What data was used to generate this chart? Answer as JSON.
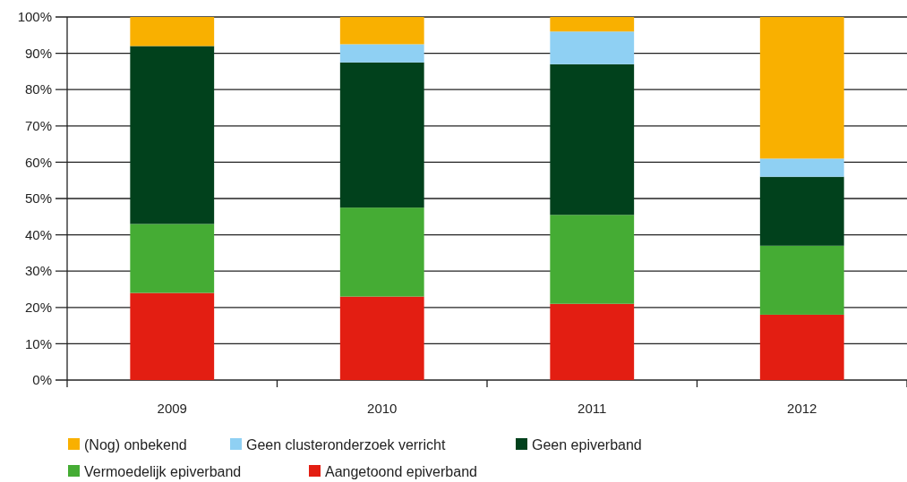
{
  "chart_data": {
    "type": "bar",
    "stacked": true,
    "categories": [
      "2009",
      "2010",
      "2011",
      "2012"
    ],
    "series": [
      {
        "name": "Aangetoond epiverband",
        "color": "#e31e12",
        "values": [
          24,
          23,
          21,
          18
        ]
      },
      {
        "name": "Vermoedelijk epiverband",
        "color": "#45ac34",
        "values": [
          19,
          24.5,
          24.5,
          19
        ]
      },
      {
        "name": "Geen epiverband",
        "color": "#01411c",
        "values": [
          49,
          40,
          41.5,
          19
        ]
      },
      {
        "name": "Geen clusteronderzoek verricht",
        "color": "#8fd0f3",
        "values": [
          0,
          5,
          9,
          5
        ]
      },
      {
        "name": "(Nog) onbekend",
        "color": "#f9b000",
        "values": [
          8,
          7.5,
          4,
          39
        ]
      }
    ],
    "ylim": [
      0,
      100
    ],
    "yticks": [
      {
        "value": 0,
        "label": "0%"
      },
      {
        "value": 10,
        "label": "10%"
      },
      {
        "value": 20,
        "label": "20%"
      },
      {
        "value": 30,
        "label": "30%"
      },
      {
        "value": 40,
        "label": "40%"
      },
      {
        "value": 50,
        "label": "50%"
      },
      {
        "value": 60,
        "label": "60%"
      },
      {
        "value": 70,
        "label": "70%"
      },
      {
        "value": 80,
        "label": "80%"
      },
      {
        "value": 90,
        "label": "90%"
      },
      {
        "value": 100,
        "label": "100%"
      }
    ],
    "grid": "y",
    "legend": "bottom"
  }
}
